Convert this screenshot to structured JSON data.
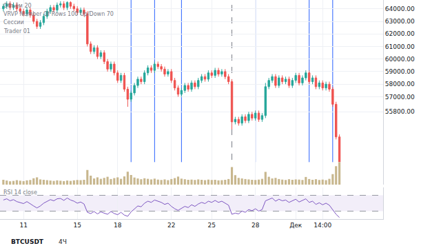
{
  "chart_data": [
    {
      "type": "candlestick",
      "title": "BTCUSDT",
      "subtitle": "4Ч",
      "annotations": [
        "VRVP Number Of Rows 100 Up/Down 70",
        "Сессии",
        "Trader 01"
      ],
      "categories": [
        null,
        null,
        null,
        null,
        null,
        null,
        "11",
        null,
        null,
        null,
        null,
        null,
        null,
        null,
        null,
        null,
        null,
        null,
        null,
        null,
        null,
        null,
        "15",
        null,
        null,
        null,
        null,
        null,
        null,
        null,
        null,
        null,
        null,
        null,
        "18",
        null,
        null,
        null,
        null,
        null,
        null,
        null,
        null,
        null,
        null,
        null,
        null,
        null,
        null,
        null,
        "22",
        null,
        null,
        null,
        null,
        null,
        null,
        null,
        null,
        null,
        null,
        null,
        "25",
        null,
        null,
        null,
        null,
        null,
        null,
        null,
        null,
        null,
        null,
        null,
        null,
        "28",
        null,
        null,
        null,
        null,
        null,
        null,
        null,
        null,
        null,
        null,
        null,
        "Дек",
        null,
        null,
        null,
        null,
        null,
        null,
        null,
        "14:00",
        null,
        null,
        null,
        null,
        null
      ],
      "open": [
        64000,
        64200,
        64400,
        64100,
        64300,
        64000,
        63800,
        63600,
        63900,
        63500,
        63000,
        62600,
        62900,
        63400,
        63800,
        64100,
        63900,
        64300,
        64400,
        64100,
        64500,
        64200,
        64000,
        63700,
        63900,
        63600,
        61200,
        60600,
        60900,
        60200,
        60500,
        59800,
        59200,
        59600,
        58900,
        58300,
        58700,
        57600,
        56800,
        57300,
        57900,
        58400,
        58200,
        58900,
        59300,
        59100,
        59600,
        59400,
        59200,
        58800,
        59000,
        58300,
        57700,
        57200,
        57500,
        57900,
        57600,
        58100,
        57800,
        58300,
        58600,
        58400,
        58900,
        58700,
        59100,
        58800,
        59000,
        58600,
        58200,
        55000,
        55200,
        54900,
        55400,
        55100,
        55600,
        55300,
        55700,
        55200,
        55500,
        57800,
        58300,
        58600,
        57900,
        58500,
        58200,
        58400,
        57900,
        58300,
        58700,
        58100,
        58500,
        58900,
        58200,
        58500,
        57800,
        58100,
        57700,
        58000,
        57600,
        56400,
        53800
      ],
      "high": [
        64400,
        64600,
        64600,
        64500,
        64500,
        64200,
        64000,
        64100,
        64100,
        63700,
        63200,
        63100,
        63600,
        64000,
        64300,
        64300,
        64500,
        64600,
        64600,
        64600,
        64600,
        64400,
        64200,
        64100,
        64100,
        63800,
        61400,
        61100,
        61100,
        60700,
        60700,
        60000,
        59800,
        59800,
        59100,
        58900,
        58900,
        57800,
        57500,
        58100,
        58600,
        58600,
        59100,
        59500,
        59500,
        59800,
        59800,
        59600,
        59400,
        59200,
        59200,
        58500,
        57900,
        57700,
        58100,
        58100,
        58300,
        58300,
        58500,
        58800,
        58800,
        59100,
        59100,
        59300,
        59300,
        59200,
        59200,
        58800,
        58400,
        55400,
        55400,
        55600,
        55600,
        55800,
        55800,
        55900,
        55900,
        55700,
        58100,
        58500,
        58800,
        58800,
        58700,
        58700,
        58600,
        58600,
        58500,
        58900,
        58900,
        58700,
        59100,
        59100,
        58700,
        58700,
        58300,
        58300,
        58200,
        58200,
        57800,
        56600,
        54000
      ],
      "low": [
        63800,
        64000,
        63900,
        63900,
        63800,
        63600,
        63400,
        63400,
        63300,
        62800,
        62400,
        62400,
        62700,
        63200,
        63600,
        63700,
        63700,
        64100,
        63900,
        63900,
        64000,
        63800,
        63500,
        63500,
        63400,
        61000,
        60400,
        60400,
        60000,
        60000,
        59600,
        59000,
        59000,
        58700,
        58100,
        58100,
        57400,
        56200,
        56600,
        57100,
        57700,
        58000,
        58000,
        58700,
        58900,
        58900,
        59200,
        59000,
        58600,
        58600,
        58100,
        57500,
        57000,
        57000,
        57300,
        57400,
        57400,
        57600,
        57600,
        58100,
        58200,
        58200,
        58500,
        58500,
        58600,
        58600,
        58400,
        58000,
        54400,
        54800,
        54700,
        54700,
        54900,
        54900,
        55100,
        55100,
        55000,
        55000,
        55300,
        57600,
        58100,
        57700,
        57700,
        58000,
        58000,
        57700,
        57700,
        58100,
        57900,
        57900,
        58300,
        58000,
        58000,
        57600,
        57600,
        57500,
        57500,
        57400,
        56200,
        53600,
        50800
      ],
      "close": [
        64200,
        64400,
        64100,
        64300,
        64000,
        63800,
        63600,
        63900,
        63500,
        63000,
        62600,
        62900,
        63400,
        63800,
        64100,
        63900,
        64300,
        64400,
        64100,
        64500,
        64200,
        64000,
        63700,
        63900,
        63600,
        61200,
        60600,
        60900,
        60200,
        60500,
        59800,
        59200,
        59600,
        58900,
        58300,
        58700,
        57600,
        56800,
        57300,
        57900,
        58400,
        58200,
        58900,
        59300,
        59100,
        59600,
        59400,
        59200,
        58800,
        59000,
        58300,
        57700,
        57200,
        57500,
        57900,
        57600,
        58100,
        57800,
        58300,
        58600,
        58400,
        58900,
        58700,
        59100,
        58800,
        59000,
        58600,
        58200,
        55000,
        55200,
        54900,
        55400,
        55100,
        55600,
        55300,
        55700,
        55200,
        55500,
        57800,
        58300,
        58600,
        57900,
        58500,
        58200,
        58400,
        57900,
        58300,
        58700,
        58100,
        58500,
        58900,
        58200,
        58500,
        57800,
        58100,
        57700,
        58000,
        57600,
        56400,
        53800,
        51500
      ],
      "color": {
        "up": "#26a69a",
        "down": "#ef5350"
      },
      "xlim": [
        -1,
        113
      ],
      "ylim": [
        50000,
        64700
      ],
      "yticks": [
        {
          "value": 55800,
          "label": "55800.00"
        },
        {
          "value": 57000,
          "label": "57000.00"
        },
        {
          "value": 58000,
          "label": "58000.00"
        },
        {
          "value": 59000,
          "label": "59000.00"
        },
        {
          "value": 60000,
          "label": "60000.00"
        },
        {
          "value": 61000,
          "label": "61000.00"
        },
        {
          "value": 62000,
          "label": "62000.00"
        },
        {
          "value": 63000,
          "label": "63000.00"
        },
        {
          "value": 64000,
          "label": "64000.00"
        }
      ],
      "session_lines": [
        38,
        45,
        53,
        75,
        91,
        98
      ],
      "dashed_lines": [
        68
      ],
      "grid": true
    },
    {
      "type": "bar",
      "title": "Объём 20",
      "values": [
        2600,
        2200,
        1800,
        2000,
        2400,
        2100,
        1900,
        2300,
        2500,
        3400,
        3900,
        2800,
        2600,
        2400,
        2200,
        2000,
        2300,
        2100,
        1900,
        2200,
        2000,
        2300,
        2500,
        2400,
        2600,
        7800,
        4800,
        3300,
        3900,
        3100,
        3600,
        4200,
        3000,
        3500,
        3900,
        3100,
        4400,
        6900,
        5200,
        3800,
        3300,
        2900,
        3400,
        3100,
        2800,
        3200,
        2700,
        2500,
        2800,
        2400,
        3000,
        3500,
        4300,
        3200,
        2900,
        2600,
        2700,
        2500,
        2800,
        2600,
        2400,
        2700,
        2500,
        2600,
        2300,
        2400,
        2600,
        3000,
        9400,
        5100,
        3600,
        3300,
        3000,
        2800,
        2600,
        2500,
        2700,
        3100,
        6800,
        4200,
        3300,
        3600,
        3000,
        2700,
        2500,
        2900,
        2600,
        2800,
        2700,
        2500,
        4100,
        3000,
        2600,
        2900,
        2500,
        2700,
        2400,
        3100,
        5600,
        9800,
        12000
      ],
      "color": "#c8b78e",
      "ylim": [
        0,
        12000
      ],
      "tick_labels": false,
      "grid": false
    },
    {
      "type": "line",
      "title": "RSI 14 close",
      "values": [
        58,
        61,
        56,
        59,
        54,
        51,
        49,
        54,
        48,
        43,
        38,
        43,
        50,
        55,
        59,
        56,
        61,
        62,
        57,
        63,
        58,
        55,
        50,
        53,
        48,
        27,
        24,
        29,
        23,
        28,
        25,
        22,
        29,
        24,
        21,
        27,
        20,
        17,
        28,
        36,
        43,
        41,
        50,
        55,
        52,
        58,
        55,
        52,
        47,
        50,
        42,
        36,
        32,
        37,
        42,
        39,
        46,
        42,
        48,
        52,
        49,
        55,
        52,
        57,
        52,
        55,
        50,
        45,
        22,
        25,
        23,
        30,
        27,
        34,
        31,
        36,
        30,
        34,
        56,
        60,
        63,
        55,
        60,
        56,
        58,
        52,
        56,
        60,
        53,
        57,
        61,
        52,
        55,
        47,
        51,
        46,
        50,
        45,
        34,
        22,
        14
      ],
      "color": "#7e57c2",
      "ylim": [
        10,
        90
      ],
      "yticks": [
        30,
        70
      ],
      "tick_labels": false,
      "grid": true
    }
  ]
}
